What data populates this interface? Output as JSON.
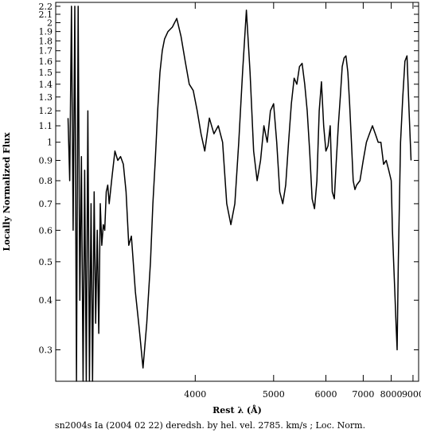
{
  "chart_data": {
    "type": "line",
    "title": "",
    "xlabel": "Rest λ (Å)",
    "ylabel": "Locally Normalized Flux",
    "caption": "sn2004s Ia (2004 02 22) deredsh. by hel. vel.  2785. km/s ;  Loc. Norm.",
    "x_scale": "reciprocal",
    "y_scale": "log",
    "xlim": [
      2950,
      9300
    ],
    "ylim": [
      0.25,
      2.25
    ],
    "x_ticks": [
      4000,
      5000,
      6000,
      7000,
      8000,
      9000
    ],
    "x_tick_labels": [
      "4000",
      "5000",
      "6000",
      "7000",
      "8000",
      "9000"
    ],
    "y_ticks": [
      0.3,
      0.4,
      0.5,
      0.6,
      0.7,
      0.8,
      0.9,
      1,
      1.1,
      1.2,
      1.3,
      1.4,
      1.5,
      1.6,
      1.7,
      1.8,
      1.9,
      2,
      2.1,
      2.2
    ],
    "y_tick_labels": [
      "0.3",
      "0.4",
      "0.5",
      "0.6",
      "0.7",
      "0.8",
      "0.9",
      "1",
      "1.1",
      "1.2",
      "1.3",
      "1.4",
      "1.5",
      "1.6",
      "1.7",
      "1.8",
      "1.9",
      "2",
      "2.1",
      "2.2"
    ],
    "grid": false,
    "line_color": "#000000",
    "series": [
      {
        "x": [
          3020,
          3030,
          3040,
          3050,
          3060,
          3070,
          3080,
          3090,
          3100,
          3110,
          3120,
          3130,
          3140,
          3150,
          3160,
          3170,
          3180,
          3190,
          3200,
          3210,
          3220,
          3230,
          3240,
          3250,
          3260,
          3270,
          3280,
          3300,
          3320,
          3340,
          3360,
          3380,
          3400,
          3420,
          3440,
          3470,
          3500,
          3530,
          3560,
          3590,
          3610,
          3630,
          3650,
          3670,
          3690,
          3710,
          3740,
          3780,
          3820,
          3860,
          3900,
          3940,
          3980,
          4020,
          4060,
          4100,
          4150,
          4200,
          4250,
          4300,
          4350,
          4400,
          4450,
          4500,
          4550,
          4600,
          4650,
          4700,
          4750,
          4800,
          4850,
          4900,
          4950,
          5000,
          5050,
          5100,
          5150,
          5200,
          5250,
          5300,
          5350,
          5400,
          5450,
          5500,
          5550,
          5600,
          5650,
          5700,
          5750,
          5800,
          5850,
          5900,
          5950,
          6000,
          6050,
          6100,
          6150,
          6200,
          6250,
          6300,
          6350,
          6400,
          6450,
          6500,
          6550,
          6600,
          6650,
          6700,
          6750,
          6800,
          6900,
          7000,
          7100,
          7200,
          7300,
          7400,
          7500,
          7600,
          7700,
          7800,
          7900,
          8000,
          8050,
          8100,
          8150,
          8200,
          8250,
          8300,
          8400,
          8500,
          8600,
          8700,
          8800,
          8900
        ],
        "y": [
          1.15,
          0.8,
          2.2,
          0.6,
          2.2,
          0.25,
          2.2,
          0.4,
          0.92,
          0.25,
          0.85,
          0.25,
          1.2,
          0.25,
          0.7,
          0.25,
          0.75,
          0.35,
          0.6,
          0.33,
          0.7,
          0.55,
          0.62,
          0.6,
          0.75,
          0.78,
          0.7,
          0.82,
          0.95,
          0.9,
          0.92,
          0.88,
          0.75,
          0.55,
          0.58,
          0.42,
          0.34,
          0.27,
          0.35,
          0.5,
          0.7,
          0.9,
          1.2,
          1.5,
          1.7,
          1.82,
          1.9,
          1.95,
          2.05,
          1.85,
          1.6,
          1.4,
          1.35,
          1.2,
          1.05,
          0.95,
          1.15,
          1.05,
          1.1,
          1.0,
          0.7,
          0.62,
          0.7,
          1.0,
          1.5,
          2.15,
          1.5,
          0.95,
          0.8,
          0.9,
          1.1,
          1.0,
          1.2,
          1.25,
          1.0,
          0.75,
          0.7,
          0.78,
          1.0,
          1.25,
          1.45,
          1.4,
          1.55,
          1.58,
          1.4,
          1.2,
          0.95,
          0.72,
          0.68,
          0.8,
          1.2,
          1.42,
          1.1,
          0.95,
          0.98,
          1.1,
          0.75,
          0.72,
          0.9,
          1.1,
          1.3,
          1.55,
          1.63,
          1.65,
          1.5,
          1.25,
          1.0,
          0.8,
          0.76,
          0.78,
          0.8,
          0.9,
          1.0,
          1.05,
          1.1,
          1.05,
          1.0,
          1.0,
          0.88,
          0.9,
          0.85,
          0.8,
          0.6,
          0.5,
          0.42,
          0.35,
          0.3,
          0.5,
          1.0,
          1.3,
          1.6,
          1.65,
          1.2,
          0.9
        ]
      }
    ]
  }
}
